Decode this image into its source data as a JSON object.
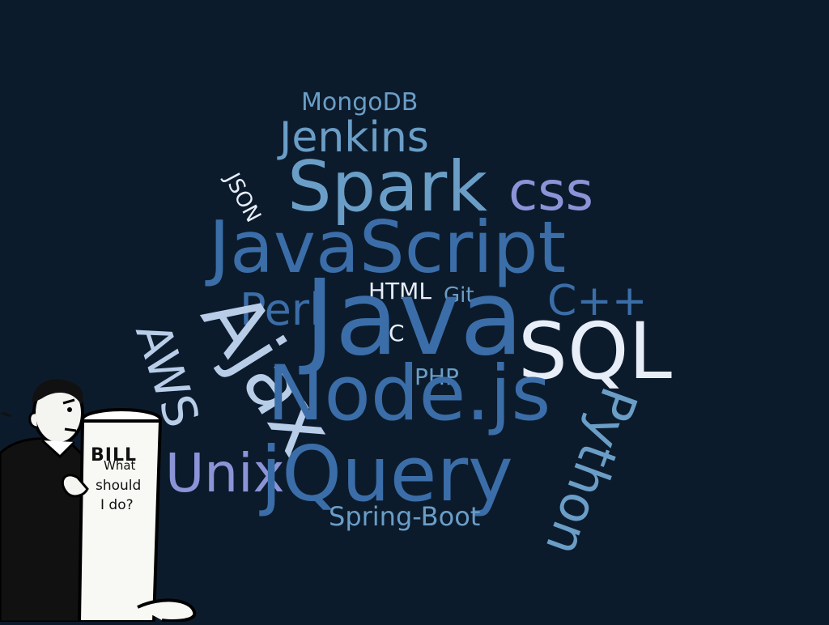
{
  "colors": {
    "background": "#0c1b2c",
    "light_blue": "#6a9ec7",
    "mid_blue": "#3b6ea8",
    "lavender": "#8c94d8",
    "white_blue": "#e8eef8",
    "pale_blue": "#b8cde8"
  },
  "words": {
    "mongodb": "MongoDB",
    "jenkins": "Jenkins",
    "json": "JSON",
    "spark": "Spark",
    "css": "css",
    "javascript": "JavaScript",
    "html": "HTML",
    "git": "Git",
    "cpp": "C++",
    "perl": "Perl",
    "java": "Java",
    "c": "C",
    "ajax": "Ajax",
    "sql": "SQL",
    "aws": "AWS",
    "php": "PHP",
    "nodejs": "Node.js",
    "python": "Python",
    "unix": "Unix",
    "jquery": "jQuery",
    "spring_boot": "Spring-Boot"
  },
  "cartoon": {
    "bill_label": "BILL",
    "question_line1": "What",
    "question_line2": "should",
    "question_line3": "I do?",
    "icon": "man-reading-scroll-icon"
  }
}
